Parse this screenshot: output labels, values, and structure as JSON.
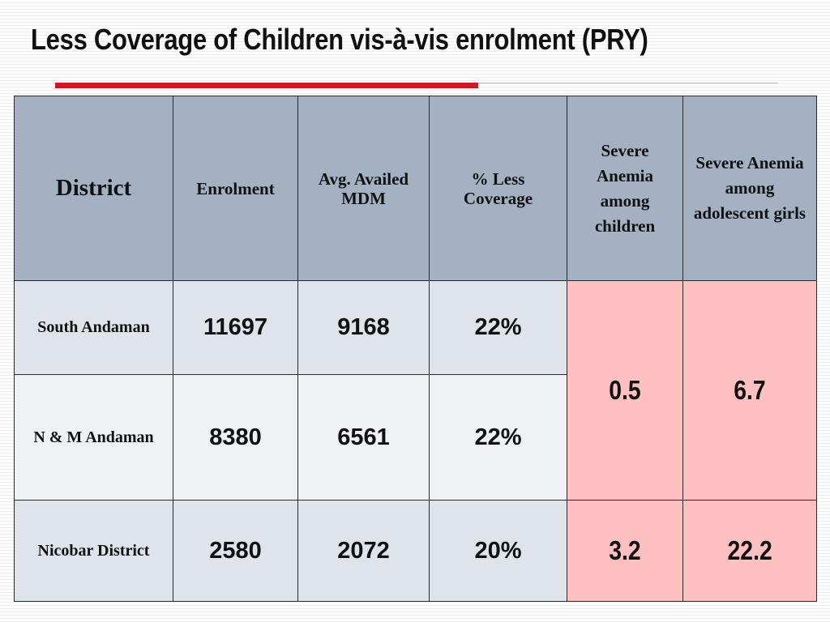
{
  "title": "Less Coverage of Children vis-à-vis enrolment (PRY)",
  "colors": {
    "title_rule": "#d01a21",
    "header_bg": "#a4b1c2",
    "highlight_bg": "#fec0c0"
  },
  "table": {
    "headers": {
      "district": "District",
      "enrolment": "Enrolment",
      "avg_mdm": "Avg. Availed MDM",
      "less_coverage": "% Less Coverage",
      "anemia_children": "Severe Anemia among children",
      "anemia_girls": "Severe Anemia among adolescent girls"
    },
    "rows": [
      {
        "district": "South Andaman",
        "enrolment": "11697",
        "avg_mdm": "9168",
        "less_coverage": "22%"
      },
      {
        "district": "N & M Andaman",
        "enrolment": "8380",
        "avg_mdm": "6561",
        "less_coverage": "22%"
      },
      {
        "district": "Nicobar District",
        "enrolment": "2580",
        "avg_mdm": "2072",
        "less_coverage": "20%"
      }
    ],
    "anemia": {
      "andaman_children": "0.5",
      "andaman_girls": "6.7",
      "nicobar_children": "3.2",
      "nicobar_girls": "22.2"
    }
  }
}
